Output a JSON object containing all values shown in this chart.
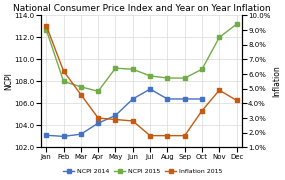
{
  "title": "National Consumer Price Index and Year on Year Inflation",
  "ylabel_left": "NCPI",
  "ylabel_right": "Inflation",
  "months": [
    "Jan",
    "Feb",
    "Mar",
    "Apr",
    "May",
    "Jun",
    "Jul",
    "Aug",
    "Sep",
    "Oct",
    "Nov",
    "Dec"
  ],
  "ncpi_2014": [
    103.1,
    103.0,
    103.2,
    104.2,
    104.9,
    106.4,
    107.3,
    106.4,
    106.4,
    106.4,
    null,
    null
  ],
  "ncpi_2015": [
    112.7,
    108.0,
    107.5,
    107.1,
    109.2,
    109.1,
    108.5,
    108.3,
    108.3,
    109.1,
    112.0,
    113.2
  ],
  "inflation_2015": [
    9.3,
    6.2,
    4.6,
    3.0,
    2.9,
    2.8,
    1.8,
    1.8,
    1.8,
    3.5,
    4.9,
    4.2
  ],
  "color_ncpi2014": "#4472C4",
  "color_ncpi2015": "#70AD47",
  "color_inflation": "#C55A11",
  "ylim_left": [
    102.0,
    114.0
  ],
  "ylim_right": [
    1.0,
    10.0
  ],
  "yticks_left": [
    102.0,
    104.0,
    106.0,
    108.0,
    110.0,
    112.0,
    114.0
  ],
  "yticks_right": [
    1.0,
    2.0,
    3.0,
    4.0,
    5.0,
    6.0,
    7.0,
    8.0,
    9.0,
    10.0
  ],
  "background_color": "#ffffff",
  "plot_bg_color": "#ffffff",
  "grid_color": "#d9d9d9",
  "marker": "s",
  "markersize": 2.5,
  "linewidth": 1.0,
  "title_fontsize": 6.5,
  "tick_fontsize": 5,
  "label_fontsize": 5.5,
  "legend_fontsize": 4.5
}
